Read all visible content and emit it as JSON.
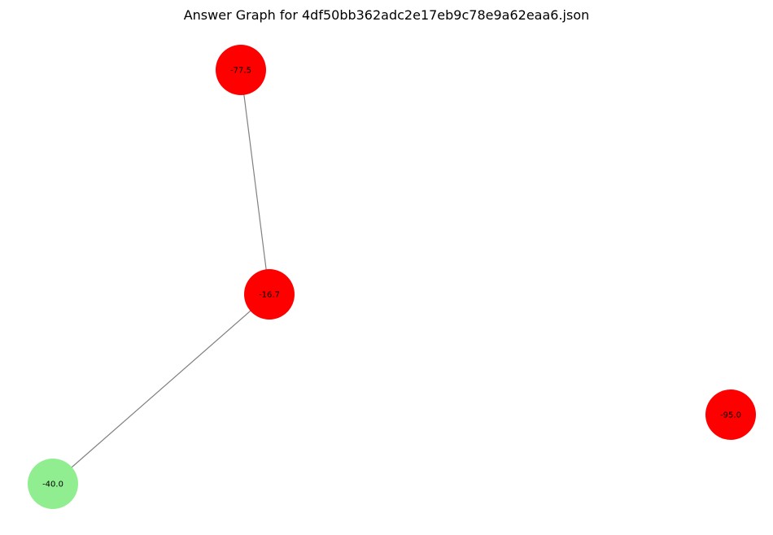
{
  "title": "Answer Graph for 4df50bb362adc2e17eb9c78e9a62eaa6.json",
  "colors": {
    "edge": "#808080",
    "label": "#000000"
  },
  "nodes": [
    {
      "id": "n1",
      "label": "-77.5",
      "color": "#ff0000"
    },
    {
      "id": "n2",
      "label": "-16.7",
      "color": "#ff0000"
    },
    {
      "id": "n3",
      "label": "-40.0",
      "color": "#90ee90"
    },
    {
      "id": "n4",
      "label": "-95.0",
      "color": "#ff0000"
    }
  ],
  "edges": [
    {
      "source": "n1",
      "target": "n2"
    },
    {
      "source": "n2",
      "target": "n3"
    }
  ]
}
